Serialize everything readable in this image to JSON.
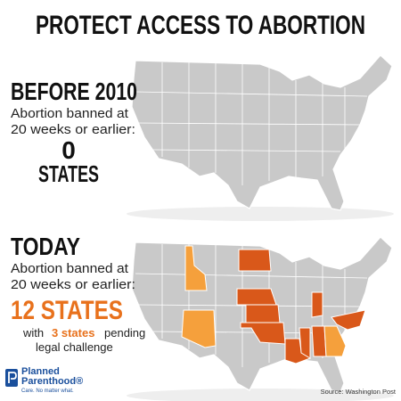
{
  "header": {
    "title": "PROTECT ACCESS TO ABORTION"
  },
  "before": {
    "heading": "BEFORE 2010",
    "subtitle": [
      "Abortion banned at",
      "20 weeks or earlier:"
    ],
    "count": "0",
    "unit": "STATES"
  },
  "today": {
    "heading": "TODAY",
    "subtitle": [
      "Abortion banned at",
      "20 weeks or earlier:"
    ],
    "count": "12 STATES",
    "note": {
      "prefix": "with",
      "highlight": "3 states",
      "suffix": "pending",
      "line2": "legal challenge"
    }
  },
  "logo": {
    "name": [
      "Planned",
      "Parenthood®"
    ],
    "tagline": "Care. No matter what."
  },
  "source": "Source: Washington Post"
}
